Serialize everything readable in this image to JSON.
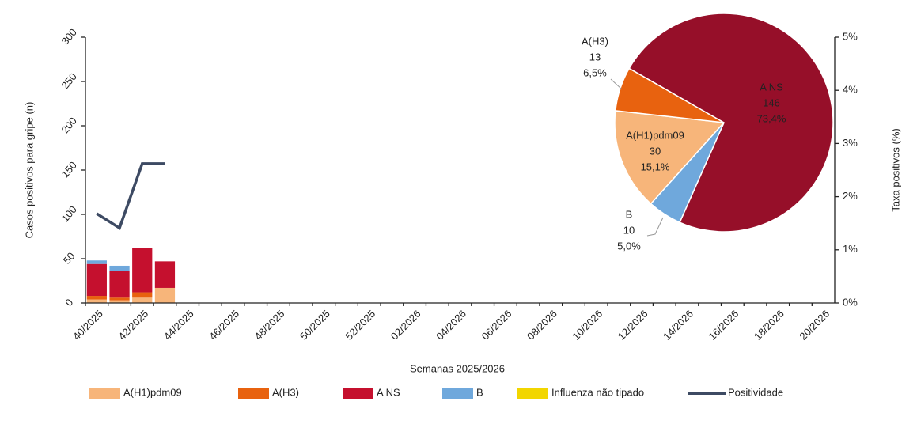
{
  "chart_data": [
    {
      "type": "bar",
      "stacked": true,
      "x_label": "Semanas 2025/2026",
      "y_label": "Casos positivos para gripe (n)",
      "y2_label": "Taxa positivos (%)",
      "categories": [
        "40/2025",
        null,
        "42/2025",
        null,
        "44/2025",
        null,
        "46/2025",
        null,
        "48/2025",
        null,
        "50/2025",
        null,
        "52/2025",
        null,
        "02/2026",
        null,
        "04/2026",
        null,
        "06/2026",
        null,
        "08/2026",
        null,
        "10/2026",
        null,
        "12/2026",
        null,
        "14/2026",
        null,
        "16/2026",
        null,
        "18/2026",
        null,
        "20/2026"
      ],
      "ylim": [
        0,
        300
      ],
      "yticks": [
        0,
        50,
        100,
        150,
        200,
        250,
        300
      ],
      "y2lim": [
        0,
        5
      ],
      "y2ticks": [
        {
          "value": 0,
          "label": "0%"
        },
        {
          "value": 1,
          "label": "1%"
        },
        {
          "value": 2,
          "label": "2%"
        },
        {
          "value": 3,
          "label": "3%"
        },
        {
          "value": 4,
          "label": "4%"
        },
        {
          "value": 5,
          "label": "5%"
        }
      ],
      "series": [
        {
          "name": "A(H1)pdm09",
          "color": "#f7b57a",
          "values": [
            4,
            3,
            6,
            17,
            null,
            null,
            null,
            null,
            null,
            null,
            null,
            null,
            null,
            null,
            null,
            null,
            null,
            null,
            null,
            null,
            null,
            null,
            null,
            null,
            null,
            null,
            null,
            null,
            null,
            null,
            null,
            null,
            null
          ]
        },
        {
          "name": "A(H3)",
          "color": "#e8620f",
          "values": [
            4,
            3,
            6,
            0,
            null,
            null,
            null,
            null,
            null,
            null,
            null,
            null,
            null,
            null,
            null,
            null,
            null,
            null,
            null,
            null,
            null,
            null,
            null,
            null,
            null,
            null,
            null,
            null,
            null,
            null,
            null,
            null,
            null
          ]
        },
        {
          "name": "A NS",
          "color": "#c5102e",
          "values": [
            36,
            30,
            50,
            30,
            null,
            null,
            null,
            null,
            null,
            null,
            null,
            null,
            null,
            null,
            null,
            null,
            null,
            null,
            null,
            null,
            null,
            null,
            null,
            null,
            null,
            null,
            null,
            null,
            null,
            null,
            null,
            null,
            null
          ]
        },
        {
          "name": "B",
          "color": "#6fa8dc",
          "values": [
            4,
            6,
            0,
            0,
            null,
            null,
            null,
            null,
            null,
            null,
            null,
            null,
            null,
            null,
            null,
            null,
            null,
            null,
            null,
            null,
            null,
            null,
            null,
            null,
            null,
            null,
            null,
            null,
            null,
            null,
            null,
            null,
            null
          ]
        },
        {
          "name": "Influenza não tipado",
          "color": "#f2d600",
          "values": [
            0,
            0,
            0,
            0,
            null,
            null,
            null,
            null,
            null,
            null,
            null,
            null,
            null,
            null,
            null,
            null,
            null,
            null,
            null,
            null,
            null,
            null,
            null,
            null,
            null,
            null,
            null,
            null,
            null,
            null,
            null,
            null,
            null
          ]
        },
        {
          "name": "Positividade",
          "type": "line",
          "axis": "y2",
          "color": "#3d4a63",
          "values": [
            1.68,
            1.41,
            2.62,
            2.62,
            null,
            null,
            null,
            null,
            null,
            null,
            null,
            null,
            null,
            null,
            null,
            null,
            null,
            null,
            null,
            null,
            null,
            null,
            null,
            null,
            null,
            null,
            null,
            null,
            null,
            null,
            null,
            null,
            null
          ]
        }
      ]
    },
    {
      "type": "pie",
      "categories": [
        "A(H1)pdm09",
        "A(H3)",
        "A NS",
        "B"
      ],
      "values": [
        30,
        13,
        146,
        10
      ],
      "percentages": [
        15.1,
        6.5,
        73.4,
        5.0
      ],
      "percentage_labels": [
        "15,1%",
        "6,5%",
        "73,4%",
        "5,0%"
      ],
      "colors": [
        "#f7b57a",
        "#e8620f",
        "#960f29",
        "#6fa8dc"
      ]
    }
  ]
}
